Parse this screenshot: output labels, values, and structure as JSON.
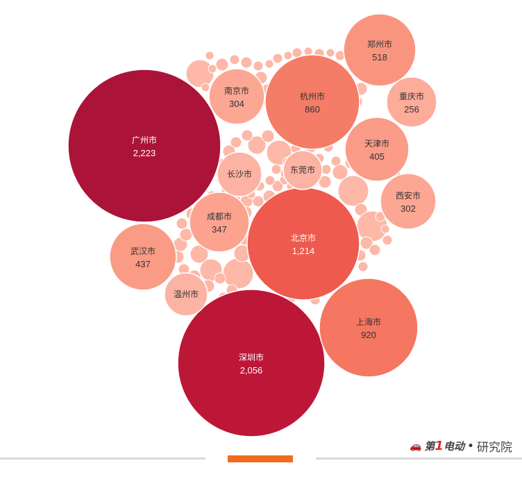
{
  "chart_data": {
    "type": "bubble",
    "title": "",
    "series": [
      {
        "name": "广州市",
        "value": 2223,
        "label": "2,223",
        "color": "#ac1338",
        "text_color": "#ffffff"
      },
      {
        "name": "深圳市",
        "value": 2056,
        "label": "2,056",
        "color": "#bd1738",
        "text_color": "#ffffff"
      },
      {
        "name": "北京市",
        "value": 1214,
        "label": "1,214",
        "color": "#ee5a4d",
        "text_color": "#ffffff"
      },
      {
        "name": "上海市",
        "value": 920,
        "label": "920",
        "color": "#f57661",
        "text_color": "#333333"
      },
      {
        "name": "杭州市",
        "value": 860,
        "label": "860",
        "color": "#f57c66",
        "text_color": "#333333"
      },
      {
        "name": "郑州市",
        "value": 518,
        "label": "518",
        "color": "#f9957f",
        "text_color": "#333333"
      },
      {
        "name": "武汉市",
        "value": 437,
        "label": "437",
        "color": "#fa9b86",
        "text_color": "#333333"
      },
      {
        "name": "天津市",
        "value": 405,
        "label": "405",
        "color": "#fa9c88",
        "text_color": "#333333"
      },
      {
        "name": "成都市",
        "value": 347,
        "label": "347",
        "color": "#fba38f",
        "text_color": "#333333"
      },
      {
        "name": "南京市",
        "value": 304,
        "label": "304",
        "color": "#fca794",
        "text_color": "#333333"
      },
      {
        "name": "西安市",
        "value": 302,
        "label": "302",
        "color": "#fca794",
        "text_color": "#333333"
      },
      {
        "name": "重庆市",
        "value": 256,
        "label": "256",
        "color": "#fcac99",
        "text_color": "#333333"
      },
      {
        "name": "长沙市",
        "value": null,
        "label": "",
        "color": "#fdb3a3",
        "text_color": "#333333"
      },
      {
        "name": "东莞市",
        "value": null,
        "label": "",
        "color": "#fdb3a3",
        "text_color": "#333333"
      },
      {
        "name": "温州市",
        "value": null,
        "label": "",
        "color": "#fdb3a3",
        "text_color": "#333333"
      }
    ],
    "minor_bubble_color": "#fdb8a8"
  },
  "watermark": {
    "car_icon": "car-icon",
    "brand_prefix": "第",
    "brand_number": "1",
    "brand_suffix": "电动",
    "separator": "•",
    "suffix": "研究院"
  },
  "colors": {
    "footer_line": "#d8d8d8",
    "footer_accent": "#f26b1d"
  }
}
